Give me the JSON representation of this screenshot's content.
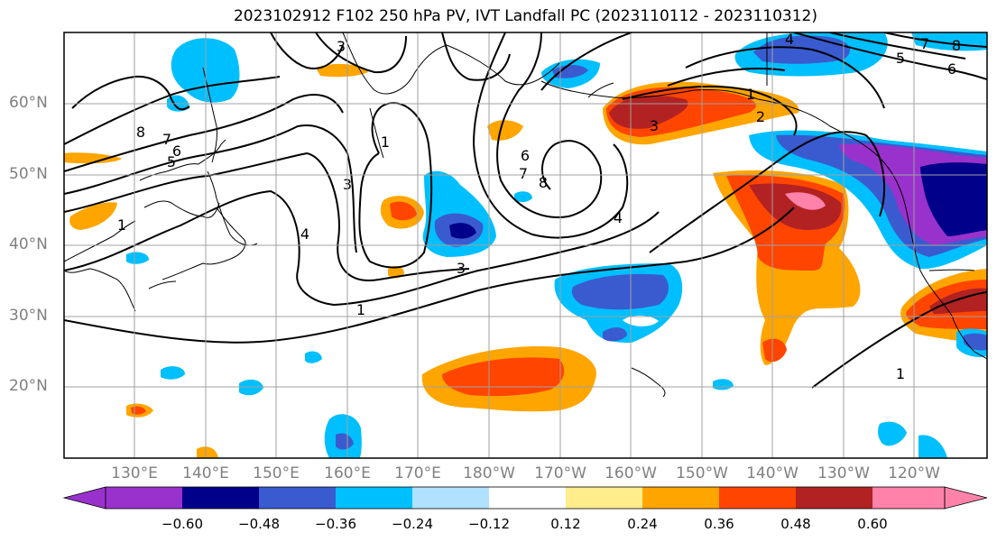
{
  "title": "2023102912 F102 250 hPa PV, IVT Landfall PC (2023110112 - 2023110312)",
  "lat_labels": [
    "60°N",
    "50°N",
    "40°N",
    "30°N",
    "20°N"
  ],
  "lon_labels": [
    "130°E",
    "140°E",
    "150°E",
    "160°E",
    "170°E",
    "180°W",
    "170°W",
    "160°W",
    "150°W",
    "140°W",
    "130°W",
    "120°W"
  ],
  "colorbar": {
    "tick_labels": [
      "−0.60",
      "−0.48",
      "−0.36",
      "−0.24",
      "−0.12",
      "0.12",
      "0.24",
      "0.36",
      "0.48",
      "0.60"
    ],
    "colors": [
      "#9932CC",
      "#00008B",
      "#3A5BCF",
      "#00BFFF",
      "#B0E2FF",
      "#FFFFFF",
      "#FFEC8B",
      "#FFA500",
      "#FF4500",
      "#B22222",
      "#FF82AB"
    ]
  },
  "contour_labels": [
    "1",
    "1",
    "1",
    "1",
    "1",
    "2",
    "3",
    "3",
    "3",
    "3",
    "4",
    "4",
    "4",
    "5",
    "5",
    "6",
    "6",
    "6",
    "7",
    "7",
    "7",
    "8",
    "8",
    "8"
  ],
  "map_colors": {
    "contour": "#000000",
    "coast": "#000000",
    "grid": "#a0a0a0"
  }
}
